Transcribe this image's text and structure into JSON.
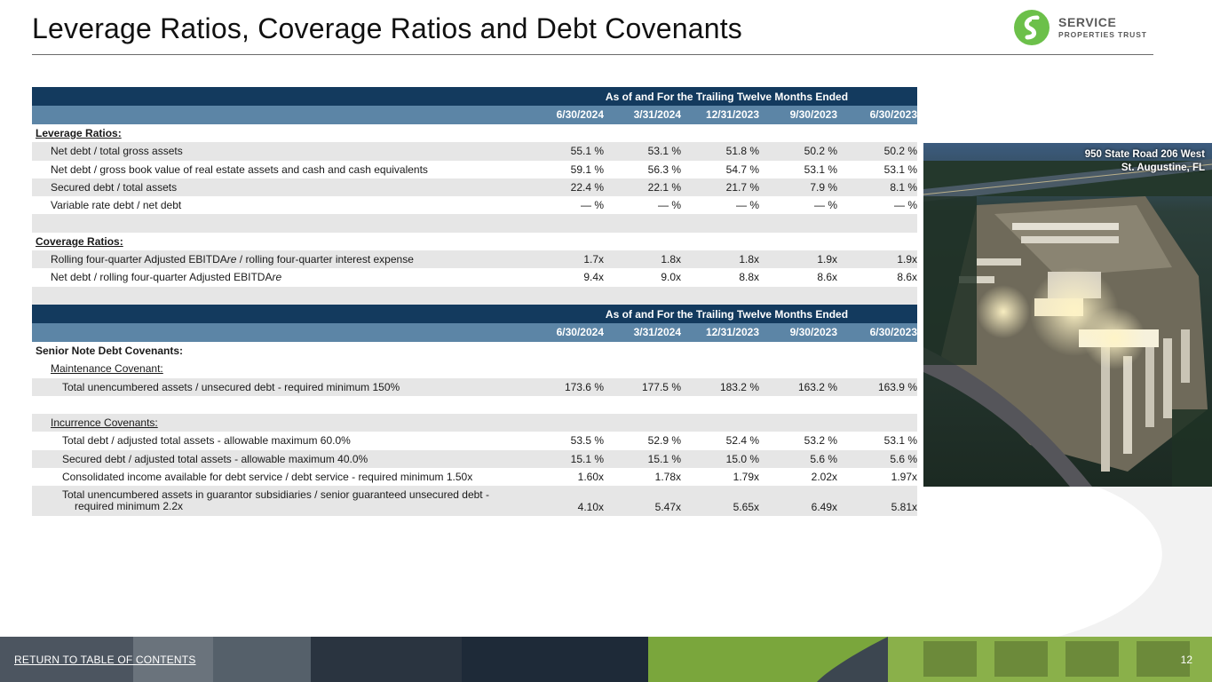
{
  "page": {
    "title": "Leverage Ratios, Coverage Ratios and Debt Covenants",
    "page_number": "12",
    "footer_link": "RETURN TO TABLE OF CONTENTS"
  },
  "logo": {
    "name": "SERVICE",
    "subtitle": "PROPERTIES TRUST",
    "brand_color": "#6cc04a"
  },
  "colors": {
    "header_dark": "#133a5e",
    "header_light": "#5c85a6",
    "row_shade": "#e6e6e6"
  },
  "photo": {
    "caption_line1": "950 State Road 206 West",
    "caption_line2": "St. Augustine, FL"
  },
  "table1": {
    "span_header": "As of and For the Trailing Twelve Months Ended",
    "dates": [
      "6/30/2024",
      "3/31/2024",
      "12/31/2023",
      "9/30/2023",
      "6/30/2023"
    ],
    "leverage_title": "Leverage Ratios:",
    "leverage": [
      {
        "label": "Net debt / total gross assets",
        "values": [
          "55.1 %",
          "53.1 %",
          "51.8 %",
          "50.2 %",
          "50.2 %"
        ]
      },
      {
        "label": "Net debt / gross book value of real estate assets and cash and cash equivalents",
        "values": [
          "59.1 %",
          "56.3 %",
          "54.7 %",
          "53.1 %",
          "53.1 %"
        ]
      },
      {
        "label": "Secured debt / total assets",
        "values": [
          "22.4 %",
          "22.1 %",
          "21.7 %",
          "7.9 %",
          "8.1 %"
        ]
      },
      {
        "label": "Variable rate debt / net debt",
        "values": [
          "— %",
          "— %",
          "— %",
          "— %",
          "— %"
        ]
      }
    ],
    "coverage_title": "Coverage Ratios:",
    "coverage": [
      {
        "label_main": "Rolling four-quarter Adjusted EBITDA",
        "label_suffix": "re",
        "label_tail": " / rolling four-quarter interest expense",
        "values": [
          "1.7x",
          "1.8x",
          "1.8x",
          "1.9x",
          "1.9x"
        ]
      },
      {
        "label_main": "Net debt / rolling four-quarter Adjusted EBITDA",
        "label_suffix": "re",
        "label_tail": "",
        "values": [
          "9.4x",
          "9.0x",
          "8.8x",
          "8.6x",
          "8.6x"
        ]
      }
    ]
  },
  "table2": {
    "span_header": "As of and For the Trailing Twelve Months Ended",
    "dates": [
      "6/30/2024",
      "3/31/2024",
      "12/31/2023",
      "9/30/2023",
      "6/30/2023"
    ],
    "section_title": "Senior Note Debt Covenants:",
    "maintenance_title": "Maintenance Covenant:",
    "maintenance": [
      {
        "label": "Total unencumbered assets / unsecured debt - required minimum 150%",
        "values": [
          "173.6 %",
          "177.5 %",
          "183.2 %",
          "163.2 %",
          "163.9 %"
        ]
      }
    ],
    "incurrence_title": "Incurrence Covenants:",
    "incurrence": [
      {
        "label": "Total debt / adjusted total assets - allowable maximum 60.0%",
        "values": [
          "53.5 %",
          "52.9 %",
          "52.4 %",
          "53.2 %",
          "53.1 %"
        ]
      },
      {
        "label": "Secured debt / adjusted total assets - allowable maximum 40.0%",
        "values": [
          "15.1 %",
          "15.1 %",
          "15.0 %",
          "5.6 %",
          "5.6 %"
        ]
      },
      {
        "label": "Consolidated income available for debt service / debt service - required minimum 1.50x",
        "values": [
          "1.60x",
          "1.78x",
          "1.79x",
          "2.02x",
          "1.97x"
        ]
      },
      {
        "label": "Total unencumbered assets in guarantor subsidiaries / senior guaranteed unsecured debt - required minimum 2.2x",
        "values": [
          "4.10x",
          "5.47x",
          "5.65x",
          "6.49x",
          "5.81x"
        ]
      }
    ]
  }
}
